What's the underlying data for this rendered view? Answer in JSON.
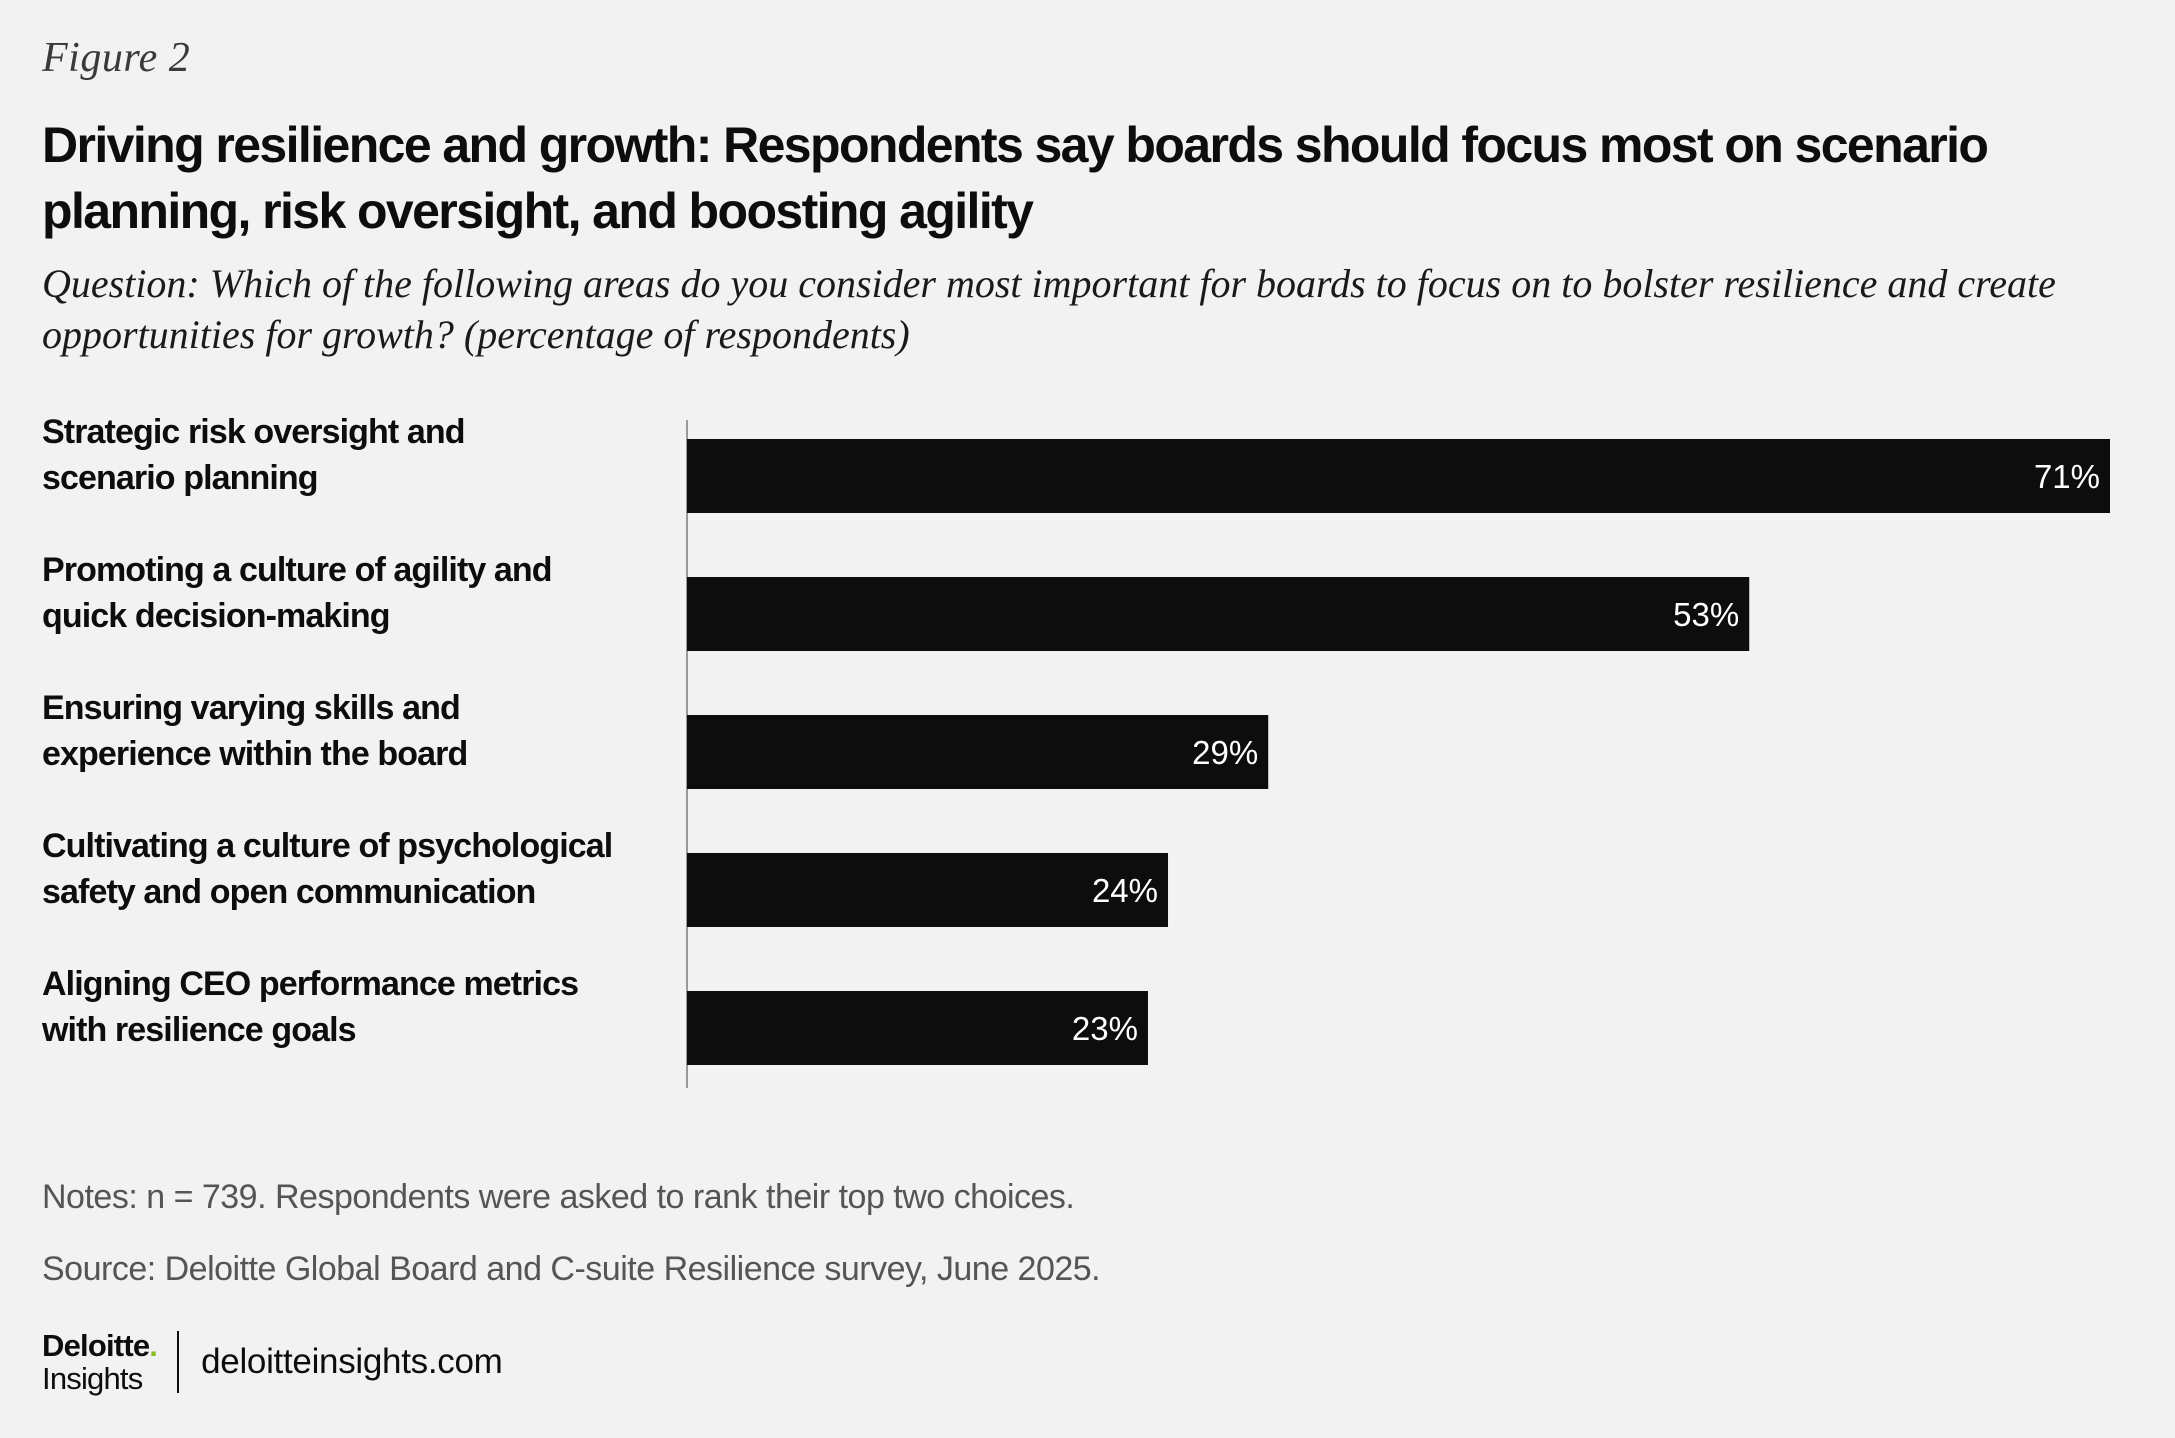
{
  "figure_label": "Figure 2",
  "title": "Driving resilience and growth: Respondents say boards should focus most on scenario planning, risk oversight, and boosting agility",
  "question": "Question: Which of the following areas do you consider most important for boards to focus on to bolster resilience and create opportunities for growth? (percentage of respondents)",
  "chart_data": {
    "type": "bar",
    "orientation": "horizontal",
    "title": "Driving resilience and growth: Respondents say boards should focus most on scenario planning, risk oversight, and boosting agility",
    "xlabel": "",
    "ylabel": "",
    "xlim": [
      0,
      71
    ],
    "grid": false,
    "legend": "none",
    "categories": [
      [
        "Strategic risk oversight and",
        "scenario planning"
      ],
      [
        "Promoting a culture of agility and",
        "quick decision-making"
      ],
      [
        "Ensuring varying skills and",
        "experience within the board"
      ],
      [
        "Cultivating a culture of psychological",
        "safety and open communication"
      ],
      [
        "Aligning CEO performance metrics",
        "with resilience goals"
      ]
    ],
    "values": [
      71,
      53,
      29,
      24,
      23
    ],
    "value_labels": [
      "71%",
      "53%",
      "29%",
      "24%",
      "23%"
    ],
    "bar_color": "#0d0d0d",
    "label_color": "#ffffff"
  },
  "notes": "Notes: n = 739. Respondents were asked to rank their top two choices.",
  "source": "Source: Deloitte Global Board and C-suite Resilience survey, June 2025.",
  "footer": {
    "logo_word": "Deloitte",
    "logo_dot": ".",
    "logo_sub": "Insights",
    "site": "deloitteinsights.com"
  }
}
